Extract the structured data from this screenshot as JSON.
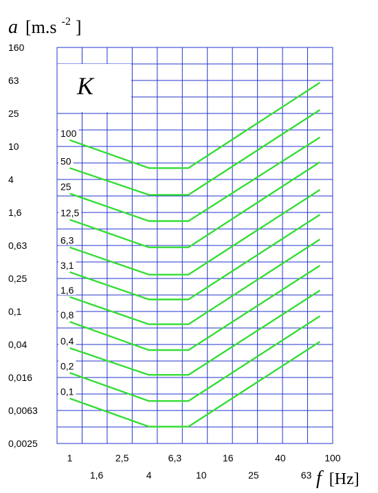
{
  "chart_data": {
    "type": "line",
    "title": "",
    "panel_label": "K",
    "ylabel": {
      "symbol": "a",
      "unit_open": "[m.s",
      "unit_exp": "-2",
      "unit_close": " ]"
    },
    "xlabel": {
      "symbol": "f",
      "unit": "[Hz]"
    },
    "y_scale": "log",
    "x_scale": "log",
    "ylim": [
      0.0025,
      160
    ],
    "xlim": [
      0.8,
      100
    ],
    "y_ticks": [
      "160",
      "63",
      "25",
      "10",
      "4",
      "1,6",
      "0,63",
      "0,25",
      "0,1",
      "0,04",
      "0,016",
      "0,0063",
      "0,0025"
    ],
    "x_ticks_top": [
      "1",
      "2,5",
      "6,3",
      "16",
      "40",
      "100"
    ],
    "x_ticks_bottom": [
      "1,6",
      "4",
      "10",
      "25",
      "63"
    ],
    "grid": true,
    "line_color": "#33dd33",
    "grid_color": "#2233cc",
    "series": [
      {
        "name": "100",
        "points": [
          [
            1,
            12
          ],
          [
            4,
            5.5
          ],
          [
            8,
            5.5
          ],
          [
            80,
            60
          ]
        ]
      },
      {
        "name": "50",
        "points": [
          [
            1,
            5.5
          ],
          [
            4,
            2.6
          ],
          [
            8,
            2.6
          ],
          [
            80,
            28
          ]
        ]
      },
      {
        "name": "25",
        "points": [
          [
            1,
            2.7
          ],
          [
            4,
            1.25
          ],
          [
            8,
            1.25
          ],
          [
            80,
            13
          ]
        ]
      },
      {
        "name": "12,5",
        "points": [
          [
            1,
            1.3
          ],
          [
            4,
            0.6
          ],
          [
            8,
            0.6
          ],
          [
            80,
            6.5
          ]
        ]
      },
      {
        "name": "6,3",
        "points": [
          [
            1,
            0.6
          ],
          [
            4,
            0.28
          ],
          [
            8,
            0.28
          ],
          [
            80,
            3
          ]
        ]
      },
      {
        "name": "3,1",
        "points": [
          [
            1,
            0.3
          ],
          [
            4,
            0.14
          ],
          [
            8,
            0.14
          ],
          [
            80,
            1.5
          ]
        ]
      },
      {
        "name": "1,6",
        "points": [
          [
            1,
            0.15
          ],
          [
            4,
            0.07
          ],
          [
            8,
            0.07
          ],
          [
            80,
            0.75
          ]
        ]
      },
      {
        "name": "0,8",
        "points": [
          [
            1,
            0.075
          ],
          [
            4,
            0.034
          ],
          [
            8,
            0.034
          ],
          [
            80,
            0.36
          ]
        ]
      },
      {
        "name": "0,4",
        "points": [
          [
            1,
            0.036
          ],
          [
            4,
            0.017
          ],
          [
            8,
            0.017
          ],
          [
            80,
            0.18
          ]
        ]
      },
      {
        "name": "0,2",
        "points": [
          [
            1,
            0.018
          ],
          [
            4,
            0.0082
          ],
          [
            8,
            0.0082
          ],
          [
            80,
            0.088
          ]
        ]
      },
      {
        "name": "0,1",
        "points": [
          [
            1,
            0.0088
          ],
          [
            4,
            0.004
          ],
          [
            8,
            0.004
          ],
          [
            80,
            0.043
          ]
        ]
      }
    ]
  }
}
